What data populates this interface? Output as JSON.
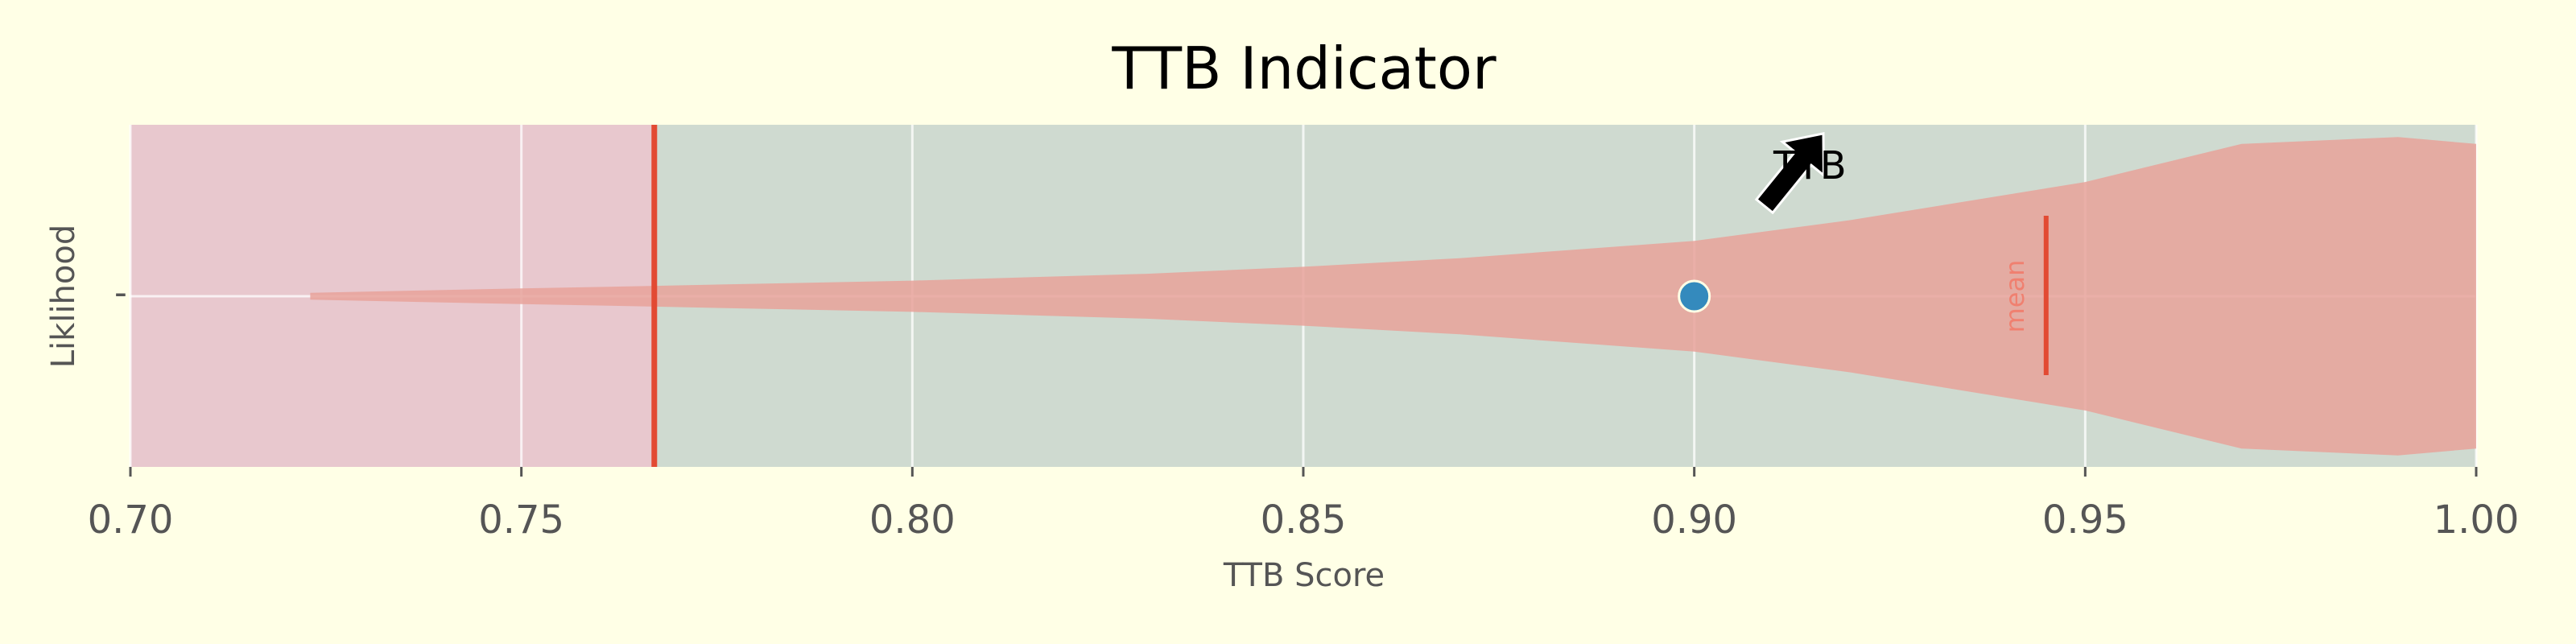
{
  "chart_data": {
    "type": "violin",
    "title": "TTB Indicator",
    "xlabel": "TTB Score",
    "ylabel": "Liklihood",
    "xlim": [
      0.7,
      1.0
    ],
    "x_ticks": [
      0.7,
      0.75,
      0.8,
      0.85,
      0.9,
      0.95,
      1.0
    ],
    "x_tick_labels": [
      "0.70",
      "0.75",
      "0.80",
      "0.85",
      "0.90",
      "0.95",
      "1.00"
    ],
    "grid": true,
    "regions": [
      {
        "from": 0.7,
        "to": 0.767,
        "color": "#e8c8ce"
      },
      {
        "from": 0.767,
        "to": 1.0,
        "color": "#cfdad0"
      }
    ],
    "threshold": {
      "value": 0.767,
      "color": "#e24a33"
    },
    "distribution": {
      "color": "#e8a29a",
      "points": [
        [
          0.723,
          0.02
        ],
        [
          0.75,
          0.045
        ],
        [
          0.767,
          0.06
        ],
        [
          0.8,
          0.09
        ],
        [
          0.83,
          0.13
        ],
        [
          0.85,
          0.17
        ],
        [
          0.87,
          0.22
        ],
        [
          0.9,
          0.32
        ],
        [
          0.92,
          0.44
        ],
        [
          0.95,
          0.66
        ],
        [
          0.97,
          0.88
        ],
        [
          0.99,
          0.92
        ],
        [
          1.0,
          0.88
        ]
      ]
    },
    "mean": {
      "value": 0.945,
      "label": "mean",
      "color": "#e24a33"
    },
    "marker": {
      "value": 0.9,
      "label": "TTB",
      "color": "#348abd"
    },
    "text": {
      "ytick_label": "-"
    }
  }
}
